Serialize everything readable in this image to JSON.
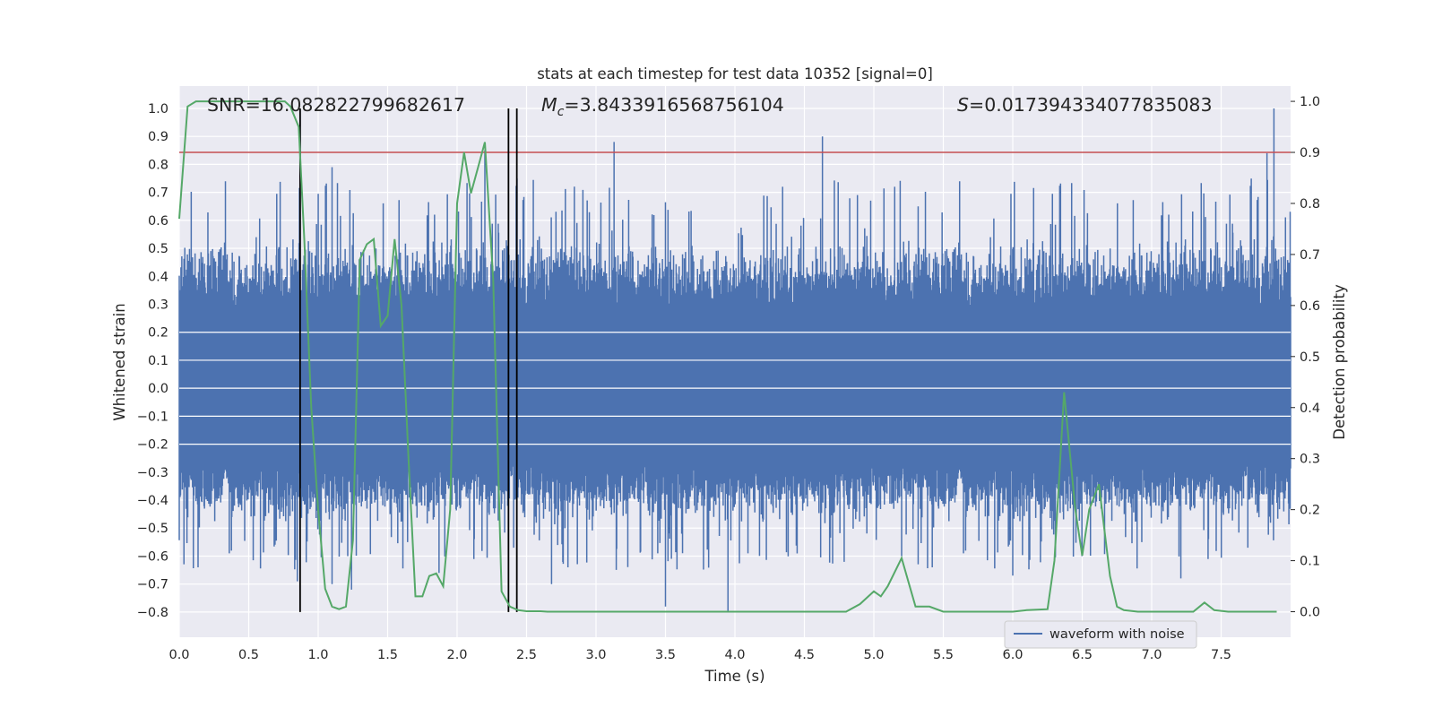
{
  "chart_data": {
    "type": "line",
    "title": "stats at each timestep for test data 10352 [signal=0]",
    "xlabel": "Time (s)",
    "ylabel_left": "Whitened strain",
    "ylabel_right": "Detection probability",
    "xlim": [
      0.0,
      8.0
    ],
    "ylim_left": [
      -0.89,
      1.08
    ],
    "ylim_right": [
      -0.05,
      1.03
    ],
    "x_ticks": [
      "0.0",
      "0.5",
      "1.0",
      "1.5",
      "2.0",
      "2.5",
      "3.0",
      "3.5",
      "4.0",
      "4.5",
      "5.0",
      "5.5",
      "6.0",
      "6.5",
      "7.0",
      "7.5"
    ],
    "y_left_ticks": [
      "1.0",
      "0.9",
      "0.8",
      "0.7",
      "0.6",
      "0.5",
      "0.4",
      "0.3",
      "0.2",
      "0.1",
      "0.0",
      "−0.1",
      "−0.2",
      "−0.3",
      "−0.4",
      "−0.5",
      "−0.6",
      "−0.7",
      "−0.8"
    ],
    "y_right_ticks": [
      "1.0",
      "0.9",
      "0.8",
      "0.7",
      "0.6",
      "0.5",
      "0.4",
      "0.3",
      "0.2",
      "0.1",
      "0.0"
    ],
    "grid": true,
    "legend_position": "lower-right",
    "stats": {
      "snr_label": "SNR=16.082822799682617",
      "mc_symbol": "M",
      "mc_sub": "c",
      "mc_value": "=3.8433916568756104",
      "s_symbol": "S",
      "s_value": "=0.017394334077835083"
    },
    "series": [
      {
        "name": "waveform with noise",
        "axis": "left",
        "color": "#4c72b0",
        "band_core": [
          -0.27,
          0.28
        ],
        "envelope_typical": [
          -0.5,
          0.55
        ],
        "notable_peaks": [
          {
            "x": 0.87,
            "y": 0.99
          },
          {
            "x": 1.1,
            "y": 0.79
          },
          {
            "x": 2.2,
            "y": 0.85
          },
          {
            "x": 3.13,
            "y": 0.88
          },
          {
            "x": 4.63,
            "y": 0.9
          },
          {
            "x": 5.15,
            "y": 0.72
          },
          {
            "x": 7.83,
            "y": 0.84
          },
          {
            "x": 7.88,
            "y": 1.0
          }
        ],
        "notable_troughs": [
          {
            "x": 0.85,
            "y": -0.69
          },
          {
            "x": 1.1,
            "y": -0.7
          },
          {
            "x": 1.24,
            "y": -0.72
          },
          {
            "x": 1.87,
            "y": -0.66
          },
          {
            "x": 2.68,
            "y": -0.7
          },
          {
            "x": 3.5,
            "y": -0.78
          },
          {
            "x": 3.95,
            "y": -0.8
          },
          {
            "x": 5.2,
            "y": -0.6
          },
          {
            "x": 6.0,
            "y": -0.67
          },
          {
            "x": 7.21,
            "y": -0.68
          }
        ]
      },
      {
        "name": "",
        "axis": "right",
        "color": "#55a868",
        "x": [
          0.0,
          0.06,
          0.12,
          0.2,
          0.3,
          0.4,
          0.5,
          0.6,
          0.7,
          0.76,
          0.8,
          0.86,
          0.9,
          0.95,
          1.0,
          1.05,
          1.1,
          1.15,
          1.2,
          1.25,
          1.3,
          1.35,
          1.4,
          1.45,
          1.5,
          1.55,
          1.6,
          1.65,
          1.7,
          1.75,
          1.8,
          1.85,
          1.9,
          1.95,
          2.0,
          2.05,
          2.1,
          2.15,
          2.2,
          2.26,
          2.32,
          2.38,
          2.44,
          2.5,
          2.55,
          2.6,
          2.65,
          2.7,
          2.8,
          2.9,
          3.0,
          3.2,
          3.4,
          3.6,
          3.8,
          4.0,
          4.2,
          4.4,
          4.6,
          4.8,
          4.9,
          5.0,
          5.05,
          5.1,
          5.2,
          5.3,
          5.4,
          5.5,
          5.6,
          5.8,
          6.0,
          6.1,
          6.25,
          6.3,
          6.37,
          6.45,
          6.5,
          6.55,
          6.62,
          6.7,
          6.75,
          6.8,
          6.9,
          7.0,
          7.1,
          7.2,
          7.3,
          7.38,
          7.45,
          7.55,
          7.7,
          7.9
        ],
        "values": [
          0.77,
          0.99,
          1.0,
          1.0,
          1.0,
          1.0,
          1.0,
          1.0,
          1.0,
          1.0,
          0.99,
          0.95,
          0.73,
          0.4,
          0.2,
          0.045,
          0.01,
          0.005,
          0.01,
          0.14,
          0.69,
          0.72,
          0.73,
          0.56,
          0.58,
          0.73,
          0.6,
          0.3,
          0.03,
          0.03,
          0.07,
          0.075,
          0.05,
          0.2,
          0.8,
          0.9,
          0.82,
          0.87,
          0.92,
          0.65,
          0.04,
          0.01,
          0.003,
          0.001,
          0.001,
          0.001,
          0.0,
          0.0,
          0.0,
          0.0,
          0.0,
          0.0,
          0.0,
          0.0,
          0.0,
          0.0,
          0.0,
          0.0,
          0.0,
          0.0,
          0.015,
          0.04,
          0.03,
          0.05,
          0.105,
          0.01,
          0.01,
          0.0,
          0.0,
          0.0,
          0.0,
          0.003,
          0.005,
          0.1,
          0.43,
          0.2,
          0.11,
          0.2,
          0.25,
          0.07,
          0.01,
          0.003,
          0.0,
          0.0,
          0.0,
          0.0,
          0.0,
          0.018,
          0.003,
          0.0,
          0.0,
          0.0
        ]
      }
    ],
    "threshold": {
      "axis": "right",
      "value": 0.9,
      "color": "#c44e52"
    },
    "vertical_markers": {
      "x": [
        0.87,
        2.37,
        2.43
      ],
      "color": "#000000"
    },
    "legend": {
      "label": "waveform with noise"
    }
  }
}
